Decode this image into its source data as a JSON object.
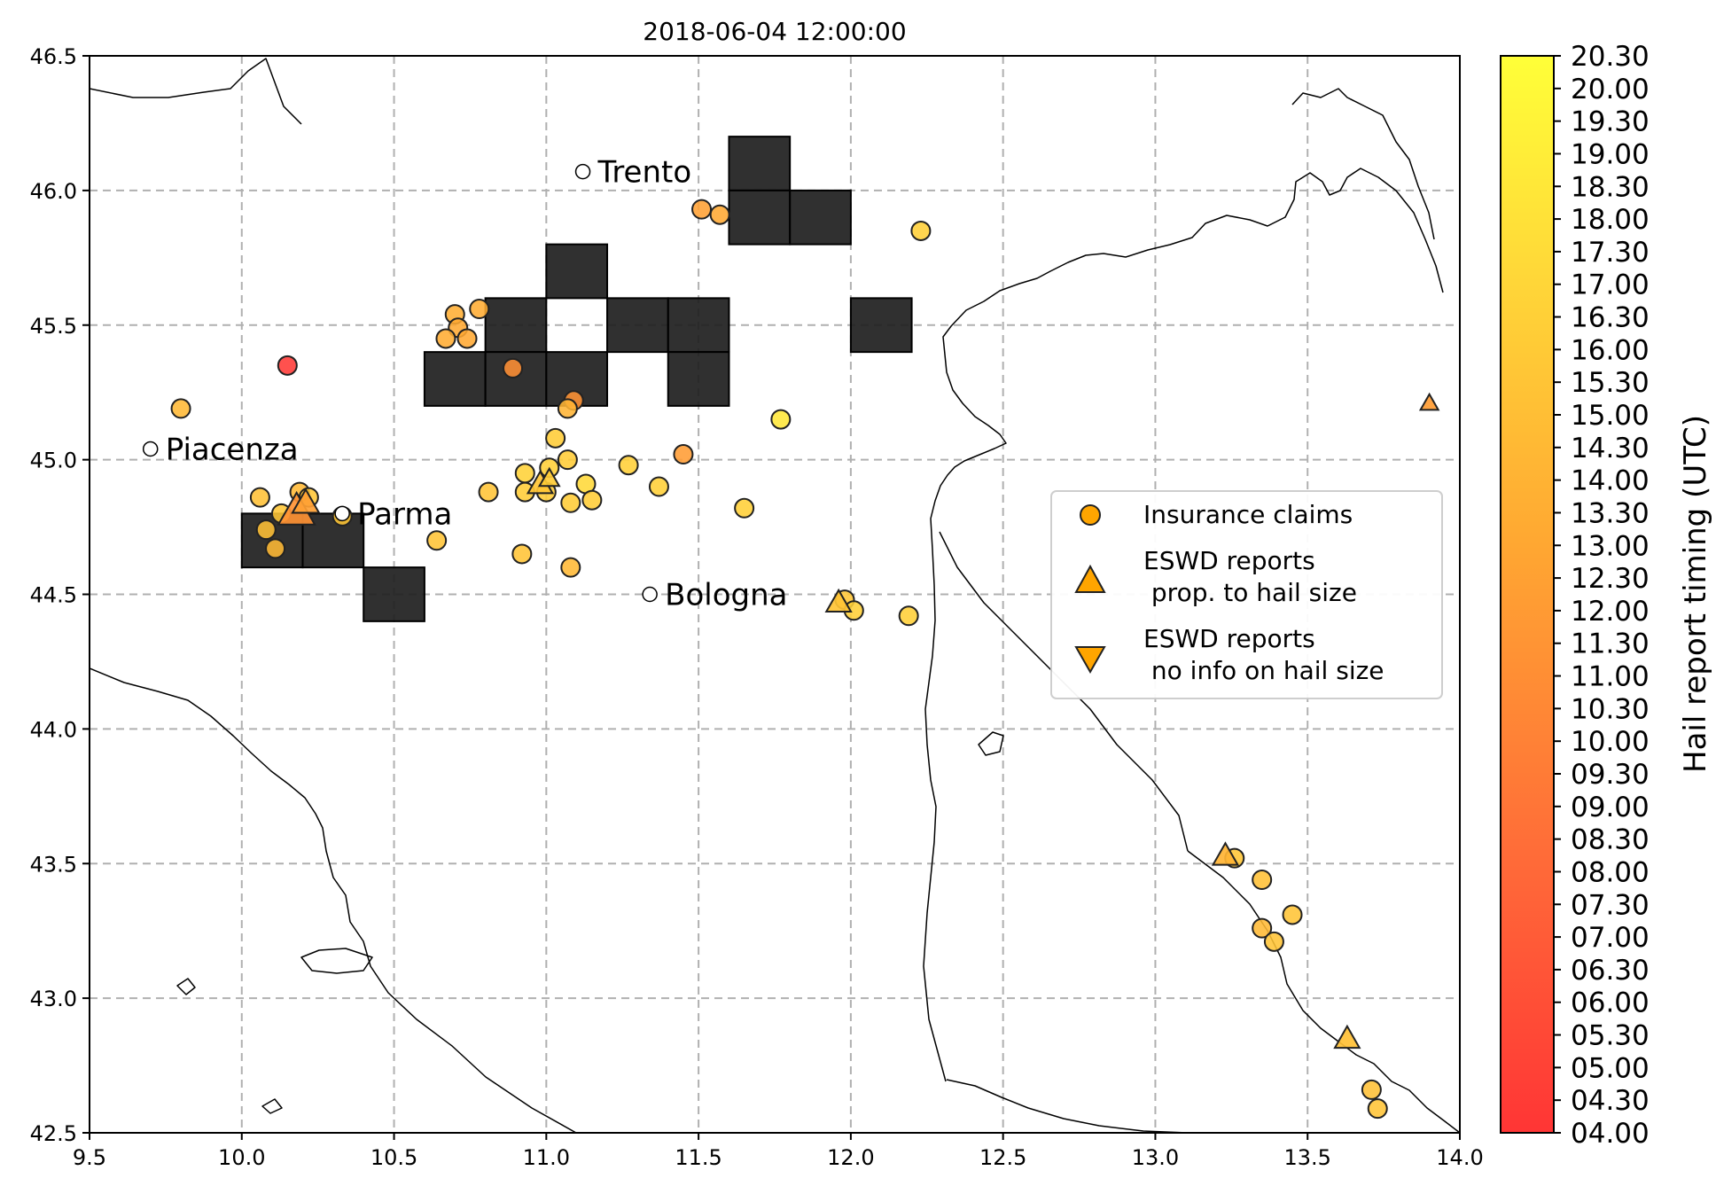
{
  "title": "2018-06-04 12:00:00",
  "map": {
    "x_ticks": [
      "9.5",
      "10.0",
      "10.5",
      "11.0",
      "11.5",
      "12.0",
      "12.5",
      "13.0",
      "13.5",
      "14.0"
    ],
    "y_ticks": [
      "42.5",
      "43.0",
      "43.5",
      "44.0",
      "44.5",
      "45.0",
      "45.5",
      "46.0",
      "46.5"
    ],
    "xlim": [
      9.5,
      14.0
    ],
    "ylim": [
      42.5,
      46.5
    ],
    "grid": true,
    "cities": [
      {
        "name": "Trento",
        "lon": 11.12,
        "lat": 46.07
      },
      {
        "name": "Piacenza",
        "lon": 9.7,
        "lat": 45.04
      },
      {
        "name": "Parma",
        "lon": 10.33,
        "lat": 44.8
      },
      {
        "name": "Bologna",
        "lon": 11.34,
        "lat": 44.5
      }
    ],
    "grid_cells": [
      [
        11.6,
        46.0
      ],
      [
        11.6,
        45.8
      ],
      [
        11.8,
        45.8
      ],
      [
        11.0,
        45.6
      ],
      [
        10.8,
        45.4
      ],
      [
        11.2,
        45.4
      ],
      [
        11.4,
        45.4
      ],
      [
        12.0,
        45.4
      ],
      [
        10.6,
        45.2
      ],
      [
        10.8,
        45.2
      ],
      [
        11.0,
        45.2
      ],
      [
        11.4,
        45.2
      ],
      [
        10.0,
        44.6
      ],
      [
        10.2,
        44.6
      ],
      [
        10.4,
        44.4
      ]
    ],
    "grid_cell_color": "#1e1e1e",
    "cell_size_deg": 0.2,
    "insurance_claims": [
      {
        "lon": 11.51,
        "lat": 45.93,
        "t": 12.3
      },
      {
        "lon": 11.57,
        "lat": 45.91,
        "t": 13.0
      },
      {
        "lon": 12.23,
        "lat": 45.85,
        "t": 16.3
      },
      {
        "lon": 10.78,
        "lat": 45.56,
        "t": 13.3
      },
      {
        "lon": 10.7,
        "lat": 45.54,
        "t": 13.5
      },
      {
        "lon": 10.71,
        "lat": 45.49,
        "t": 13.0
      },
      {
        "lon": 10.67,
        "lat": 45.45,
        "t": 13.3
      },
      {
        "lon": 10.74,
        "lat": 45.45,
        "t": 13.0
      },
      {
        "lon": 10.89,
        "lat": 45.34,
        "t": 11.0
      },
      {
        "lon": 10.15,
        "lat": 45.35,
        "t": 4.3
      },
      {
        "lon": 9.8,
        "lat": 45.19,
        "t": 14.3
      },
      {
        "lon": 11.09,
        "lat": 45.22,
        "t": 11.3
      },
      {
        "lon": 11.07,
        "lat": 45.19,
        "t": 14.0
      },
      {
        "lon": 11.77,
        "lat": 45.15,
        "t": 18.3
      },
      {
        "lon": 11.03,
        "lat": 45.08,
        "t": 16.0
      },
      {
        "lon": 11.45,
        "lat": 45.02,
        "t": 12.0
      },
      {
        "lon": 11.07,
        "lat": 45.0,
        "t": 16.0
      },
      {
        "lon": 11.27,
        "lat": 44.98,
        "t": 16.3
      },
      {
        "lon": 11.01,
        "lat": 44.97,
        "t": 16.3
      },
      {
        "lon": 10.93,
        "lat": 44.95,
        "t": 16.5
      },
      {
        "lon": 11.13,
        "lat": 44.91,
        "t": 17.0
      },
      {
        "lon": 11.37,
        "lat": 44.9,
        "t": 16.3
      },
      {
        "lon": 10.93,
        "lat": 44.88,
        "t": 16.0
      },
      {
        "lon": 10.81,
        "lat": 44.88,
        "t": 15.3
      },
      {
        "lon": 11.0,
        "lat": 44.88,
        "t": 16.0
      },
      {
        "lon": 11.15,
        "lat": 44.85,
        "t": 16.0
      },
      {
        "lon": 11.08,
        "lat": 44.84,
        "t": 16.0
      },
      {
        "lon": 11.65,
        "lat": 44.82,
        "t": 16.3
      },
      {
        "lon": 10.19,
        "lat": 44.88,
        "t": 14.3
      },
      {
        "lon": 10.06,
        "lat": 44.86,
        "t": 15.0
      },
      {
        "lon": 10.22,
        "lat": 44.86,
        "t": 15.5
      },
      {
        "lon": 10.33,
        "lat": 44.79,
        "t": 15.5
      },
      {
        "lon": 10.13,
        "lat": 44.8,
        "t": 15.5
      },
      {
        "lon": 10.08,
        "lat": 44.74,
        "t": 15.0
      },
      {
        "lon": 10.64,
        "lat": 44.7,
        "t": 15.3
      },
      {
        "lon": 10.11,
        "lat": 44.67,
        "t": 14.5
      },
      {
        "lon": 10.92,
        "lat": 44.65,
        "t": 15.3
      },
      {
        "lon": 11.08,
        "lat": 44.6,
        "t": 14.3
      },
      {
        "lon": 11.98,
        "lat": 44.48,
        "t": 15.5
      },
      {
        "lon": 12.01,
        "lat": 44.44,
        "t": 16.3
      },
      {
        "lon": 12.19,
        "lat": 44.42,
        "t": 16.3
      },
      {
        "lon": 13.26,
        "lat": 43.52,
        "t": 15.5
      },
      {
        "lon": 13.35,
        "lat": 43.44,
        "t": 15.0
      },
      {
        "lon": 13.45,
        "lat": 43.31,
        "t": 15.3
      },
      {
        "lon": 13.35,
        "lat": 43.26,
        "t": 14.5
      },
      {
        "lon": 13.39,
        "lat": 43.21,
        "t": 15.3
      },
      {
        "lon": 13.71,
        "lat": 42.66,
        "t": 15.0
      },
      {
        "lon": 13.73,
        "lat": 42.59,
        "t": 15.3
      }
    ],
    "eswd_size_reports": [
      {
        "lon": 10.18,
        "lat": 44.81,
        "t": 11.3,
        "size": 30
      },
      {
        "lon": 10.21,
        "lat": 44.84,
        "t": 12.3,
        "size": 20
      },
      {
        "lon": 10.98,
        "lat": 44.91,
        "t": 15.3,
        "size": 18
      },
      {
        "lon": 11.01,
        "lat": 44.93,
        "t": 16.0,
        "size": 13
      },
      {
        "lon": 11.96,
        "lat": 44.47,
        "t": 15.3,
        "size": 18
      },
      {
        "lon": 13.23,
        "lat": 43.53,
        "t": 14.0,
        "size": 18
      },
      {
        "lon": 13.63,
        "lat": 42.85,
        "t": 15.0,
        "size": 18
      },
      {
        "lon": 13.9,
        "lat": 45.21,
        "t": 12.0,
        "size": 11
      }
    ]
  },
  "legend": {
    "items": [
      {
        "label_lines": [
          "Insurance claims"
        ]
      },
      {
        "label_lines": [
          "ESWD reports",
          " prop. to hail size"
        ]
      },
      {
        "label_lines": [
          "ESWD reports",
          " no info on hail size"
        ]
      }
    ]
  },
  "colorbar": {
    "label": "Hail report timing (UTC)",
    "min": 4.0,
    "max": 20.3,
    "gradient_colors": [
      "#ff3535",
      "#ff6a38",
      "#ffa832",
      "#ffd838",
      "#ffff38"
    ],
    "ticks": [
      "04.00",
      "04.30",
      "05.00",
      "05.30",
      "06.00",
      "06.30",
      "07.00",
      "07.30",
      "08.00",
      "08.30",
      "09.00",
      "09.30",
      "10.00",
      "10.30",
      "11.00",
      "11.30",
      "12.00",
      "12.30",
      "13.00",
      "13.30",
      "14.00",
      "14.30",
      "15.00",
      "15.30",
      "16.00",
      "16.30",
      "17.00",
      "17.30",
      "18.00",
      "18.30",
      "19.00",
      "19.30",
      "20.00",
      "20.30"
    ]
  },
  "chart_data": {
    "type": "scatter",
    "title": "2018-06-04 12:00:00",
    "xlabel": "",
    "ylabel": "",
    "xlim": [
      9.5,
      14.0
    ],
    "ylim": [
      42.5,
      46.5
    ],
    "grid": true,
    "legend_position": "center-right",
    "colorbar_label": "Hail report timing (UTC)",
    "colorbar_range": [
      4.0,
      20.3
    ]
  }
}
